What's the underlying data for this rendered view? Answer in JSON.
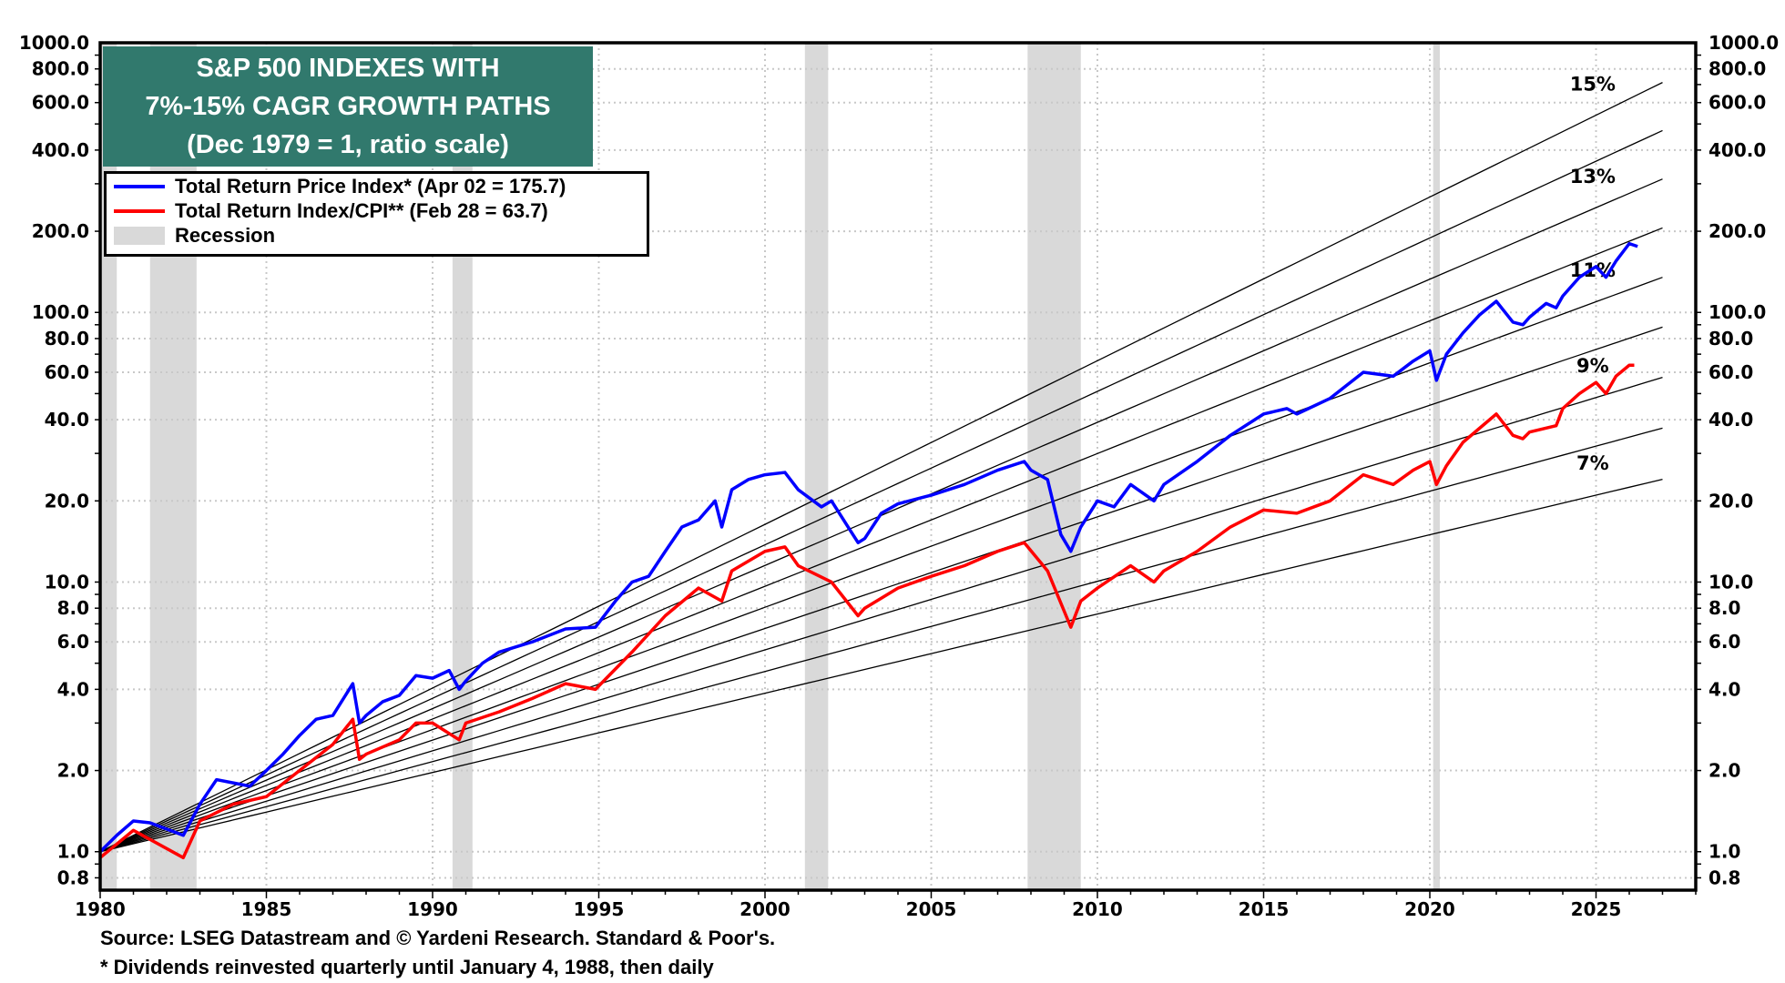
{
  "chart_data": {
    "type": "line",
    "title": [
      "S&P 500 INDEXES WITH",
      "7%-15% CAGR GROWTH PATHS",
      "(Dec 1979 = 1, ratio scale)"
    ],
    "xlabel": "",
    "ylabel": "",
    "y_scale": "log",
    "xlim": [
      1980,
      2028
    ],
    "ylim": [
      0.72,
      1000
    ],
    "grid": true,
    "legend_placement": "top-left",
    "x_ticks": [
      "1980",
      "1985",
      "1990",
      "1995",
      "2000",
      "2005",
      "2010",
      "2015",
      "2020",
      "2025"
    ],
    "y_ticks": [
      "1000.0",
      "800.0",
      "600.0",
      "400.0",
      "200.0",
      "100.0",
      "80.0",
      "60.0",
      "40.0",
      "20.0",
      "10.0",
      "8.0",
      "6.0",
      "4.0",
      "2.0",
      "1.0",
      "0.8"
    ],
    "y_axis_sides": [
      "left",
      "right"
    ],
    "legend": [
      {
        "label": "Total Return Price Index* (Apr 02 = 175.7)",
        "color": "#0000ff"
      },
      {
        "label": "Total Return Index/CPI** (Feb 28 = 63.7)",
        "color": "#ff0000"
      },
      {
        "label": "Recession",
        "color": "#d9d9d9"
      }
    ],
    "recessions": [
      [
        1980.0,
        1980.5
      ],
      [
        1981.5,
        1982.9
      ],
      [
        1990.6,
        1991.2
      ],
      [
        2001.2,
        2001.9
      ],
      [
        2007.9,
        2009.5
      ],
      [
        2020.1,
        2020.3
      ]
    ],
    "growth_paths": {
      "start": 1980,
      "end": 2027,
      "base": 1,
      "rates": [
        7,
        8,
        9,
        10,
        11,
        12,
        13,
        14,
        15
      ],
      "labels": [
        {
          "rate": 15,
          "text": "15%"
        },
        {
          "rate": 13,
          "text": "13%"
        },
        {
          "rate": 11,
          "text": "11%"
        },
        {
          "rate": 9,
          "text": "9%"
        },
        {
          "rate": 7,
          "text": "7%"
        }
      ]
    },
    "series": [
      {
        "name": "Total Return Price Index*",
        "color": "#0000ff",
        "x": [
          1980,
          1980.5,
          1981,
          1981.5,
          1982.5,
          1983,
          1983.5,
          1984,
          1984.5,
          1985,
          1985.5,
          1986,
          1986.5,
          1987,
          1987.6,
          1987.8,
          1988,
          1988.5,
          1989,
          1989.5,
          1990,
          1990.5,
          1990.8,
          1991,
          1991.5,
          1992,
          1993,
          1994,
          1994.9,
          1995.5,
          1996,
          1996.5,
          1997,
          1997.5,
          1998,
          1998.5,
          1998.7,
          1999,
          1999.5,
          2000,
          2000.6,
          2001,
          2001.7,
          2002,
          2002.5,
          2002.8,
          2003,
          2003.5,
          2004,
          2005,
          2006,
          2007,
          2007.8,
          2008,
          2008.5,
          2008.9,
          2009.2,
          2009.5,
          2010,
          2010.5,
          2011,
          2011.7,
          2012,
          2013,
          2014,
          2015,
          2015.7,
          2016,
          2017,
          2018,
          2018.9,
          2019.5,
          2020,
          2020.2,
          2020.5,
          2021,
          2021.5,
          2022,
          2022.5,
          2022.8,
          2023,
          2023.5,
          2023.8,
          2024,
          2024.5,
          2025,
          2025.3,
          2025.6,
          2026,
          2026.25
        ],
        "y": [
          1.0,
          1.15,
          1.3,
          1.28,
          1.15,
          1.5,
          1.85,
          1.8,
          1.75,
          2.0,
          2.3,
          2.7,
          3.1,
          3.2,
          4.2,
          3.0,
          3.2,
          3.6,
          3.8,
          4.5,
          4.4,
          4.7,
          4.0,
          4.3,
          5.0,
          5.5,
          6.0,
          6.7,
          6.8,
          8.5,
          10.0,
          10.5,
          13,
          16,
          17,
          20,
          16,
          22,
          24,
          25,
          25.5,
          22,
          19,
          20,
          16,
          14,
          14.5,
          18,
          19.5,
          21,
          23,
          26,
          28,
          26,
          24,
          15,
          13,
          16,
          20,
          19,
          23,
          20,
          23,
          28,
          35,
          42,
          44,
          42,
          48,
          60,
          58,
          66,
          72,
          56,
          70,
          84,
          98,
          110,
          92,
          90,
          96,
          108,
          104,
          115,
          135,
          148,
          135,
          155,
          180,
          175.7
        ]
      },
      {
        "name": "Total Return Index/CPI**",
        "color": "#ff0000",
        "x": [
          1980,
          1981,
          1982.5,
          1983,
          1984,
          1985,
          1986,
          1987,
          1987.6,
          1987.8,
          1988,
          1989,
          1989.5,
          1990,
          1990.8,
          1991,
          1992,
          1993,
          1994,
          1994.9,
          1996,
          1997,
          1998,
          1998.7,
          1999,
          2000,
          2000.6,
          2001,
          2002,
          2002.8,
          2003,
          2004,
          2005,
          2006,
          2007,
          2007.8,
          2008.5,
          2009.2,
          2009.5,
          2010,
          2011,
          2011.7,
          2012,
          2013,
          2014,
          2015,
          2016,
          2017,
          2018,
          2018.9,
          2019.5,
          2020,
          2020.2,
          2020.5,
          2021,
          2022,
          2022.5,
          2022.8,
          2023,
          2023.8,
          2024,
          2024.5,
          2025,
          2025.3,
          2025.6,
          2026,
          2026.15
        ],
        "y": [
          0.95,
          1.2,
          0.95,
          1.3,
          1.5,
          1.6,
          2.0,
          2.5,
          3.1,
          2.2,
          2.3,
          2.6,
          3.0,
          3.0,
          2.6,
          3.0,
          3.3,
          3.7,
          4.2,
          4.0,
          5.5,
          7.5,
          9.5,
          8.5,
          11,
          13,
          13.5,
          11.5,
          10,
          7.5,
          8,
          9.5,
          10.5,
          11.5,
          13,
          14,
          11,
          6.8,
          8.5,
          9.5,
          11.5,
          10,
          11,
          13,
          16,
          18.5,
          18,
          20,
          25,
          23,
          26,
          28,
          23,
          27,
          33,
          42,
          35,
          34,
          36,
          38,
          44,
          50,
          55,
          50,
          58,
          63.7,
          63.7
        ]
      }
    ]
  },
  "footer": {
    "source": "Source: LSEG Datastream and © Yardeni Research. Standard & Poor's.",
    "note": "* Dividends reinvested quarterly until January 4, 1988, then daily"
  }
}
